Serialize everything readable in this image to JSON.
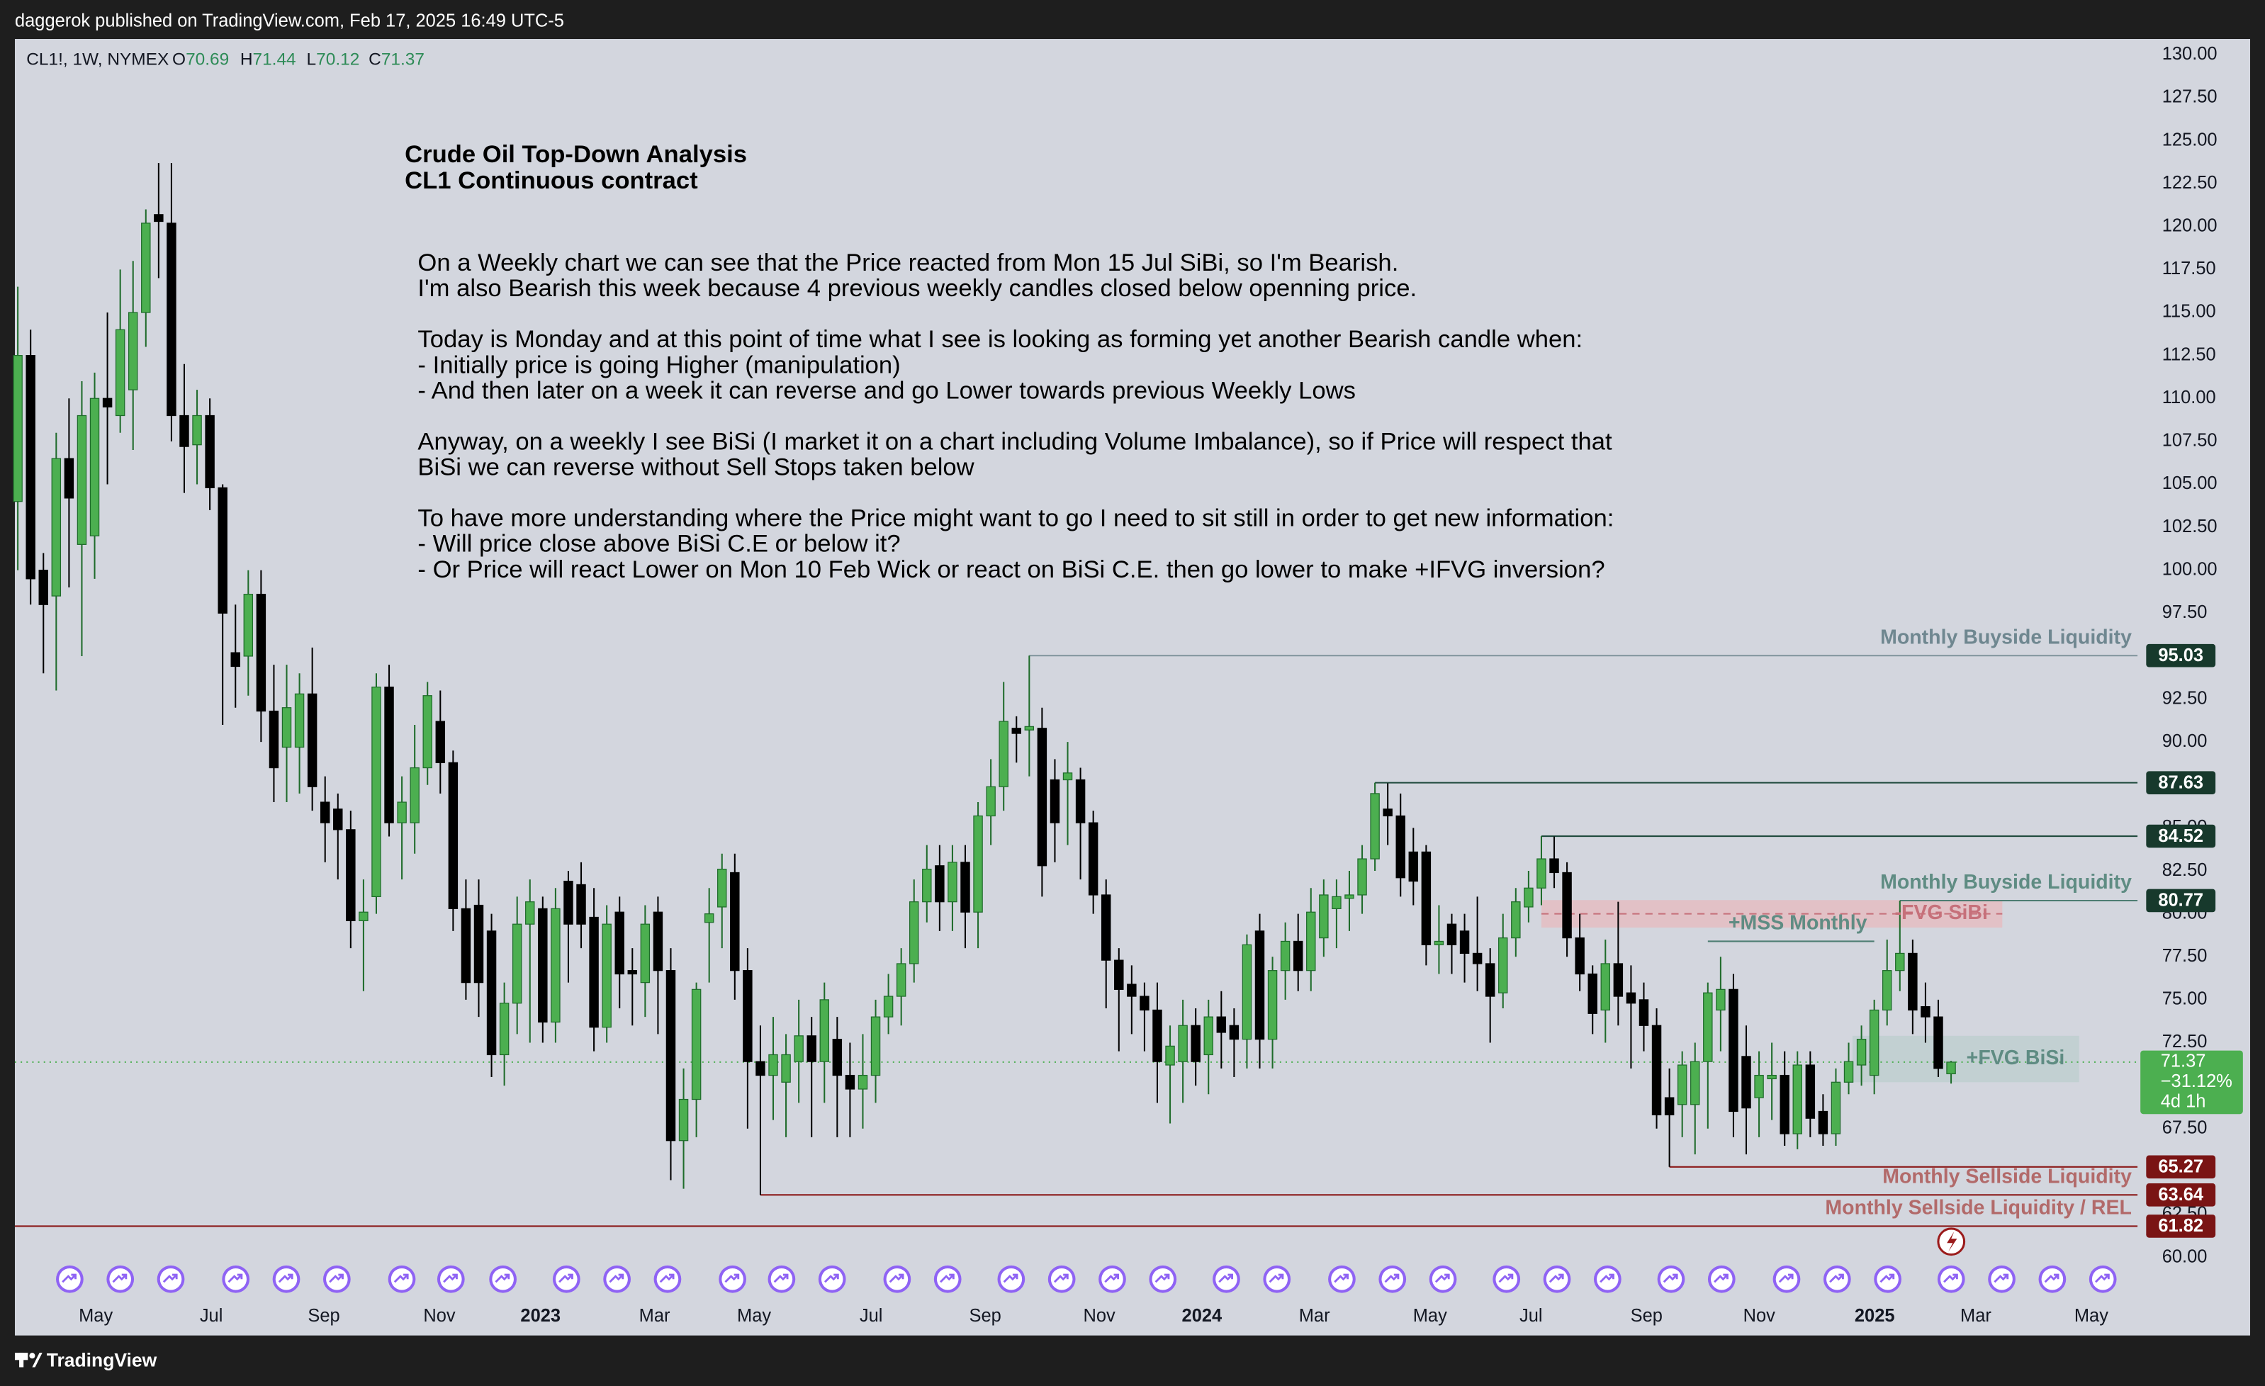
{
  "header": "daggerok published on TradingView.com, Feb 17, 2025 16:49 UTC-5",
  "footer": "TradingView",
  "chart_data": {
    "type": "candlestick",
    "symbol": "CL1!, 1W, NYMEX",
    "ohlc_keys": [
      "O",
      "H",
      "L",
      "C"
    ],
    "up_color": "#4caf50",
    "down_color": "#000000",
    "open": [
      104,
      112.5,
      100,
      98.5,
      106.5,
      101.5,
      102,
      110,
      109,
      110.5,
      115,
      120.7,
      120.2,
      109,
      107.3,
      109,
      104.8,
      95.2,
      95,
      98.6,
      91.8,
      89.7,
      89.7,
      92.8,
      86.5,
      86.1,
      84.9,
      79.6,
      81,
      93.2,
      85.3,
      85.3,
      88.5,
      91.2,
      88.8,
      80.3,
      80.5,
      79,
      71.8,
      74.8,
      79.4,
      80.3,
      73.7,
      81.9,
      81.7,
      79.8,
      73.4,
      80.1,
      76.7,
      76,
      80.1,
      76.7,
      66.8,
      69.2,
      79.5,
      80.4,
      82.4,
      76.7,
      71.4,
      70.6,
      70.2,
      71.4,
      72.9,
      71.4,
      72.7,
      70.6,
      69.8,
      70.6,
      74,
      75.2,
      77.1,
      80.7,
      82.8,
      80.7,
      83,
      80.1,
      85.7,
      87.4,
      90.8,
      90.7,
      90.8,
      87.8,
      87.8,
      87.8,
      85.3,
      81.1,
      77.3,
      75.9,
      75.2,
      74.4,
      71.2,
      71.4,
      73.5,
      71.8,
      74,
      73.5,
      72.7,
      79,
      72.7,
      76.7,
      78.4,
      76.7,
      78.6,
      80.3,
      80.9,
      81.1,
      83.2,
      86.1,
      85.7,
      83.6,
      83.6,
      78.2,
      79.4,
      79,
      77.7,
      77.1,
      75.4,
      78.6,
      80.4,
      81.5,
      83.2,
      82.4,
      78.6,
      76.5,
      74.4,
      77.1,
      75.4,
      75,
      73.5,
      69.3,
      68.9,
      68.9,
      71.4,
      74.4,
      75.6,
      71.7,
      69.3,
      70.4,
      70.6,
      67.2,
      71.2,
      68.5,
      67.2,
      70.2,
      71.2,
      70.6,
      74.4,
      76.7,
      77.7,
      74.6,
      74,
      70.69
    ],
    "high": [
      116.5,
      114,
      101,
      108,
      110,
      111,
      111.5,
      115,
      117.5,
      118,
      121,
      123.7,
      123.7,
      112,
      110.5,
      110,
      105,
      98,
      100,
      100,
      94.5,
      94.5,
      94,
      95.5,
      88,
      87,
      86,
      82,
      94,
      94.5,
      88,
      91,
      93.5,
      93,
      89.5,
      82,
      82,
      80,
      76,
      81,
      82,
      81,
      81.5,
      82.5,
      83,
      81.5,
      80.5,
      81,
      78,
      80.5,
      81,
      78,
      71,
      76,
      81.5,
      83.5,
      83.5,
      78,
      73.5,
      74,
      73,
      75,
      74,
      76,
      74,
      72.5,
      73,
      75,
      76.5,
      78,
      82,
      84,
      84,
      84,
      84,
      86.5,
      89,
      93.5,
      91.5,
      95.03,
      92,
      89,
      90,
      88.5,
      86,
      82,
      78,
      77,
      76,
      76,
      73.5,
      75,
      74.5,
      75,
      75.5,
      74.5,
      78.8,
      80,
      77.5,
      79.5,
      80,
      81.5,
      82,
      82,
      82.5,
      84,
      87.63,
      87.6,
      87,
      85,
      84,
      80.5,
      80,
      80,
      81,
      78,
      80,
      81.5,
      82.5,
      84.52,
      84.5,
      83,
      80,
      77,
      78.5,
      80.7,
      77,
      76,
      74.5,
      71,
      72,
      72.5,
      76,
      77.5,
      76.5,
      73.5,
      72,
      72.5,
      72,
      72,
      72,
      69.5,
      71,
      72.5,
      73.5,
      75,
      78.5,
      80.77,
      78.5,
      76,
      75,
      71.44
    ],
    "low": [
      100,
      98,
      94,
      93,
      99,
      95,
      99.5,
      105,
      108,
      107,
      113,
      117,
      107.5,
      104.5,
      105,
      103.5,
      91,
      92,
      92.7,
      90,
      86.5,
      86.5,
      87,
      86,
      83,
      82,
      78,
      75.5,
      80,
      84.5,
      82,
      83.5,
      87.5,
      87,
      79,
      75,
      74,
      70.5,
      70,
      73,
      72.5,
      72.5,
      72.5,
      76,
      78,
      72,
      72.5,
      74.5,
      73.5,
      74,
      73,
      64.5,
      64,
      67,
      76,
      78,
      75,
      67.5,
      63.64,
      68,
      67,
      69,
      67,
      69,
      67,
      67,
      67.5,
      69,
      73,
      73.5,
      76,
      79.5,
      79,
      79,
      78,
      78,
      84,
      86,
      88.8,
      88,
      81,
      83,
      84,
      82,
      80,
      74.5,
      72,
      73,
      72,
      69,
      67.8,
      69,
      70,
      69.5,
      71,
      70.5,
      71,
      71,
      71,
      75,
      75.5,
      75.5,
      77.5,
      78,
      79,
      80,
      82.5,
      84,
      81,
      80.5,
      77,
      76.5,
      76.5,
      76,
      75.5,
      72.5,
      74.5,
      77.5,
      79.5,
      80.5,
      81.5,
      77.5,
      75.5,
      73,
      72.5,
      73.5,
      71,
      72,
      67.5,
      65.27,
      67,
      66,
      67.5,
      72,
      67,
      66,
      67,
      68,
      66.5,
      66.3,
      67,
      66.5,
      66.5,
      69.5,
      70,
      69.5,
      73.5,
      75.5,
      73,
      72.5,
      70.5,
      70.12
    ],
    "close": [
      112.5,
      99.5,
      98,
      106.5,
      104.2,
      109,
      110,
      109.5,
      114,
      115,
      120.2,
      120.3,
      109,
      107.2,
      109,
      104.8,
      97.5,
      94.4,
      98.6,
      91.8,
      88.5,
      92,
      92.8,
      87.4,
      85.3,
      84.9,
      79.6,
      80.1,
      93.2,
      85.3,
      86.5,
      88.5,
      92.7,
      88.8,
      80.3,
      76,
      76,
      71.8,
      74.8,
      79.4,
      80.7,
      73.7,
      80.3,
      79.4,
      79.4,
      73.4,
      79.4,
      76.5,
      76.5,
      79.4,
      76.7,
      66.8,
      69.2,
      75.6,
      80,
      82.6,
      76.7,
      71.4,
      70.6,
      71.8,
      71.8,
      72.9,
      71.4,
      75,
      70.6,
      69.8,
      70.6,
      74,
      75.2,
      77.1,
      80.7,
      82.6,
      80.7,
      83,
      80.1,
      85.7,
      87.4,
      91.2,
      90.5,
      90.9,
      82.8,
      85.3,
      88.2,
      85.3,
      81.1,
      77.3,
      75.6,
      75.2,
      74.4,
      71.4,
      72.3,
      73.5,
      71.4,
      74,
      73.1,
      72.7,
      78.2,
      72.7,
      76.7,
      78.4,
      76.7,
      80.1,
      81.1,
      81,
      81.1,
      83.2,
      87,
      85.7,
      82.1,
      81.9,
      78.2,
      78.4,
      78.2,
      77.7,
      77.1,
      75.2,
      78.6,
      80.7,
      81.5,
      83.2,
      82.4,
      78.6,
      76.5,
      74.2,
      77.1,
      75.2,
      74.8,
      73.5,
      68.3,
      68.3,
      71.2,
      71.4,
      75.4,
      75.6,
      68.5,
      68.7,
      70.6,
      70.6,
      67.2,
      71.2,
      68.1,
      67.2,
      70.2,
      71.4,
      72.7,
      74.4,
      76.7,
      77.7,
      74.4,
      74,
      71,
      71.37
    ],
    "xlim": [
      -0.23,
      165.56
    ],
    "xticks": [
      {
        "value": 6.09,
        "label": "May"
      },
      {
        "value": 15.11,
        "label": "Jul"
      },
      {
        "value": 23.91,
        "label": "Sep"
      },
      {
        "value": 32.93,
        "label": "Nov"
      },
      {
        "value": 40.83,
        "label": "2023"
      },
      {
        "value": 49.73,
        "label": "Mar"
      },
      {
        "value": 57.51,
        "label": "May"
      },
      {
        "value": 66.65,
        "label": "Jul"
      },
      {
        "value": 75.56,
        "label": "Sep"
      },
      {
        "value": 84.47,
        "label": "Nov"
      },
      {
        "value": 92.48,
        "label": "2024"
      },
      {
        "value": 101.27,
        "label": "Mar"
      },
      {
        "value": 110.3,
        "label": "May"
      },
      {
        "value": 118.19,
        "label": "Jul"
      },
      {
        "value": 127.21,
        "label": "Sep"
      },
      {
        "value": 136.01,
        "label": "Nov"
      },
      {
        "value": 145.03,
        "label": "2025"
      },
      {
        "value": 152.93,
        "label": "Mar"
      },
      {
        "value": 161.95,
        "label": "May"
      }
    ],
    "ylim": [
      57.98,
      130.92
    ],
    "yticks": [
      {
        "value": 60,
        "label": "60.00"
      },
      {
        "value": 62.5,
        "label": "62.50"
      },
      {
        "value": 67.5,
        "label": "67.50"
      },
      {
        "value": 72.5,
        "label": "72.50"
      },
      {
        "value": 75,
        "label": "75.00"
      },
      {
        "value": 77.5,
        "label": "77.50"
      },
      {
        "value": 80,
        "label": "80.00"
      },
      {
        "value": 82.5,
        "label": "82.50"
      },
      {
        "value": 85,
        "label": "85.00"
      },
      {
        "value": 90,
        "label": "90.00"
      },
      {
        "value": 92.5,
        "label": "92.50"
      },
      {
        "value": 97.5,
        "label": "97.50"
      },
      {
        "value": 100,
        "label": "100.00"
      },
      {
        "value": 102.5,
        "label": "102.50"
      },
      {
        "value": 105,
        "label": "105.00"
      },
      {
        "value": 107.5,
        "label": "107.50"
      },
      {
        "value": 110,
        "label": "110.00"
      },
      {
        "value": 112.5,
        "label": "112.50"
      },
      {
        "value": 115,
        "label": "115.00"
      },
      {
        "value": 117.5,
        "label": "117.50"
      },
      {
        "value": 120,
        "label": "120.00"
      },
      {
        "value": 122.5,
        "label": "122.50"
      },
      {
        "value": 125,
        "label": "125.00"
      },
      {
        "value": 127.5,
        "label": "127.50"
      },
      {
        "value": 130,
        "label": "130.00"
      }
    ],
    "grid": false,
    "price_change": {
      "value": -31.12,
      "label": "−31.12%"
    },
    "countdown": "4d 1h",
    "price_color": "#4caf50",
    "levels": [
      {
        "label": "Monthly Buyside Liquidity",
        "value": 95.03,
        "start": 79,
        "color": "#7f939c",
        "label_color": "#6f8790",
        "badge_color": "#17392c"
      },
      {
        "value": 87.63,
        "start": 106,
        "color": "#1f4a3d",
        "badge_color": "#17392c"
      },
      {
        "value": 84.52,
        "start": 119,
        "color": "#1f4a3d",
        "badge_color": "#17392c"
      },
      {
        "label": "Monthly Buyside Liquidity",
        "value": 80.77,
        "start": 147,
        "color": "#4d7d72",
        "label_color": "#5f8c83",
        "badge_color": "#17392c"
      },
      {
        "value": 65.27,
        "start": 129,
        "color": "#8b1a1a",
        "badge_color": "#7a1414"
      },
      {
        "label": "Monthly Sellside Liquidity",
        "value": 63.64,
        "start": 58,
        "color": "#8b1a1a",
        "label_color": "#b26a6a",
        "badge_color": "#7a1414"
      },
      {
        "label": "Monthly Sellside Liquidity / REL",
        "value": 61.82,
        "color": "#8b1a1a",
        "label_color": "#b26a6a",
        "badge_color": "#7a1414"
      }
    ],
    "zones": [
      {
        "label": "-FVG SiBi",
        "top": 80.8,
        "bottom": 79.2,
        "start": 119,
        "end": 155,
        "color": "#e7b9bd",
        "label_color": "#c6707a",
        "midline": true
      },
      {
        "label": "+FVG BiSi",
        "top": 72.9,
        "bottom": 70.2,
        "start": 143.3,
        "end": 161,
        "color": "#bccdcd",
        "label_color": "#5f8c83",
        "midline": false
      }
    ],
    "structure": [
      {
        "label": "+MSS Monthly",
        "value": 78.4,
        "start": 132,
        "end": 145,
        "color": "#4d7d72",
        "label_color": "#5f8c83"
      }
    ],
    "note": {
      "title": [
        "Crude Oil Top-Down Analysis",
        "CL1 Continuous contract"
      ],
      "paragraphs": [
        [
          "On a Weekly chart we can see that the Price reacted from Mon 15 Jul SiBi, so I'm Bearish.",
          "I'm also Bearish this week because 4 previous weekly candles closed below openning price."
        ],
        [
          "Today is Monday and at this point of time what I see is looking as forming yet another Bearish candle when:",
          "- Initially price is going Higher (manipulation)",
          "- And then later on a week it can reverse and go Lower towards previous Weekly Lows"
        ],
        [
          "Anyway, on a weekly I see BiSi (I market it on a chart including Volume Imbalance), so if Price will respect that",
          "BiSi we can reverse without Sell Stops taken below"
        ],
        [
          "To have more understanding where the Price might want to go I need to sit still in order to get new information:",
          "- Will price close above BiSi C.E or below it?",
          "- Or Price will react Lower on Mon 10 Feb Wick or react on BiSi C.E. then go lower to make +IFVG inversion?"
        ]
      ]
    }
  }
}
